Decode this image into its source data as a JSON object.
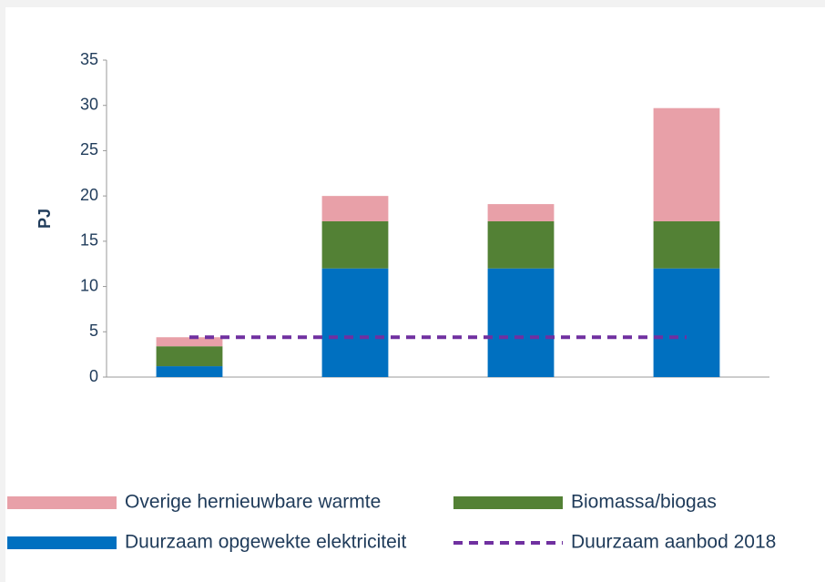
{
  "chart_data": {
    "type": "bar",
    "stacked": true,
    "y_label": "PJ",
    "categories": [
      null,
      null,
      null,
      null
    ],
    "series": [
      {
        "name": "Overige hernieuwbare warmte",
        "color": "#e8a0a8",
        "values": [
          1.0,
          2.8,
          1.9,
          12.5
        ]
      },
      {
        "name": "Biomassa/biogas",
        "color": "#538135",
        "values": [
          2.2,
          5.2,
          5.2,
          5.2
        ]
      },
      {
        "name": "Duurzaam opgewekte elektriciteit",
        "color": "#0070c0",
        "values": [
          1.2,
          12,
          12,
          12
        ]
      },
      {
        "name": "Duurzaam aanbod 2018",
        "color": "#7030a0",
        "type": "line",
        "dashed": true,
        "values": [
          4.4,
          4.4,
          4.4,
          4.4
        ]
      }
    ],
    "ylim": [
      0,
      35
    ],
    "yticks": [
      0,
      5,
      10,
      15,
      20,
      25,
      30,
      35
    ],
    "grid": false
  }
}
